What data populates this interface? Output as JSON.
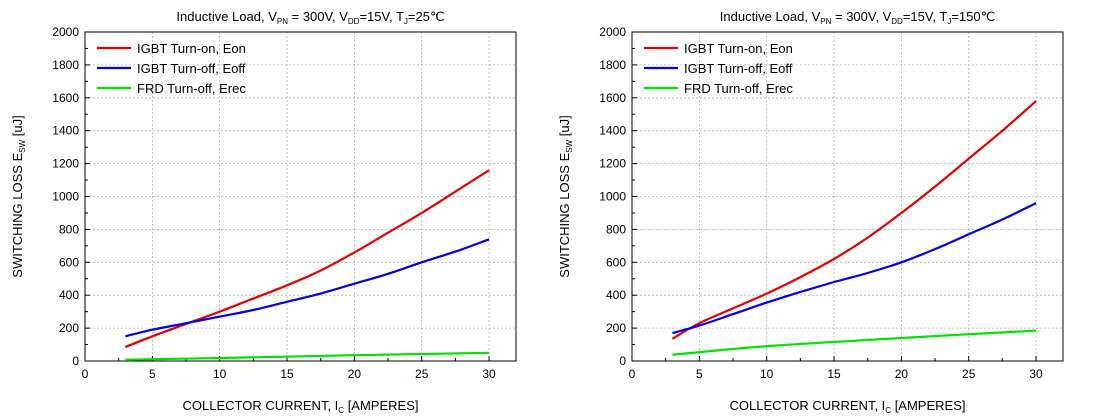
{
  "chart_data": [
    {
      "type": "line",
      "title": {
        "prefix": "Inductive Load, V",
        "sub1": "PN",
        "mid1": " = 300V, V",
        "sub2": "DD",
        "mid2": "=15V, T",
        "sub3": "J",
        "suffix": "=25℃"
      },
      "xlabel": {
        "prefix": "COLLECTOR CURRENT, I",
        "sub": "C",
        "suffix": " [AMPERES]"
      },
      "ylabel": {
        "prefix": "SWITCHING LOSS E",
        "sub": "SW",
        "suffix": " [uJ]"
      },
      "xlim": [
        0,
        32
      ],
      "ylim": [
        0,
        2000
      ],
      "xticks": [
        0,
        5,
        10,
        15,
        20,
        25,
        30
      ],
      "yticks": [
        0,
        200,
        400,
        600,
        800,
        1000,
        1200,
        1400,
        1600,
        1800,
        2000
      ],
      "grid": true,
      "legend": "top-left",
      "series": [
        {
          "name": "IGBT Turn-on, Eon",
          "color": "#e00000",
          "x": [
            3,
            5,
            7.5,
            10,
            12.5,
            15,
            17.5,
            20,
            22.5,
            25,
            27.5,
            30
          ],
          "y": [
            85,
            150,
            225,
            300,
            380,
            460,
            550,
            660,
            780,
            900,
            1030,
            1160
          ]
        },
        {
          "name": "IGBT Turn-off, Eoff",
          "color": "#0000e0",
          "x": [
            3,
            5,
            7.5,
            10,
            12.5,
            15,
            17.5,
            20,
            22.5,
            25,
            27.5,
            30
          ],
          "y": [
            150,
            190,
            230,
            270,
            310,
            360,
            410,
            470,
            530,
            600,
            665,
            740
          ]
        },
        {
          "name": "FRD Turn-off, Erec",
          "color": "#00e000",
          "x": [
            3,
            10,
            20,
            30
          ],
          "y": [
            8,
            18,
            35,
            50
          ]
        }
      ]
    },
    {
      "type": "line",
      "title": {
        "prefix": "Inductive Load, V",
        "sub1": "PN",
        "mid1": " = 300V, V",
        "sub2": "DD",
        "mid2": "=15V, T",
        "sub3": "J",
        "suffix": "=150℃"
      },
      "xlabel": {
        "prefix": "COLLECTOR CURRENT, I",
        "sub": "C",
        "suffix": " [AMPERES]"
      },
      "ylabel": {
        "prefix": "SWITCHING LOSS E",
        "sub": "SW",
        "suffix": " [uJ]"
      },
      "xlim": [
        0,
        32
      ],
      "ylim": [
        0,
        2000
      ],
      "xticks": [
        0,
        5,
        10,
        15,
        20,
        25,
        30
      ],
      "yticks": [
        0,
        200,
        400,
        600,
        800,
        1000,
        1200,
        1400,
        1600,
        1800,
        2000
      ],
      "grid": true,
      "legend": "top-left",
      "series": [
        {
          "name": "IGBT Turn-on, Eon",
          "color": "#e00000",
          "x": [
            3,
            5,
            7.5,
            10,
            12.5,
            15,
            17.5,
            20,
            22.5,
            25,
            27.5,
            30
          ],
          "y": [
            135,
            230,
            320,
            410,
            510,
            620,
            750,
            900,
            1060,
            1230,
            1400,
            1580
          ]
        },
        {
          "name": "IGBT Turn-off, Eoff",
          "color": "#0000e0",
          "x": [
            3,
            5,
            7.5,
            10,
            12.5,
            15,
            17.5,
            20,
            22.5,
            25,
            27.5,
            30
          ],
          "y": [
            170,
            215,
            285,
            355,
            420,
            480,
            535,
            600,
            680,
            770,
            860,
            960
          ]
        },
        {
          "name": "FRD Turn-off, Erec",
          "color": "#00e000",
          "x": [
            3,
            10,
            20,
            30
          ],
          "y": [
            38,
            90,
            140,
            185
          ]
        }
      ]
    }
  ]
}
